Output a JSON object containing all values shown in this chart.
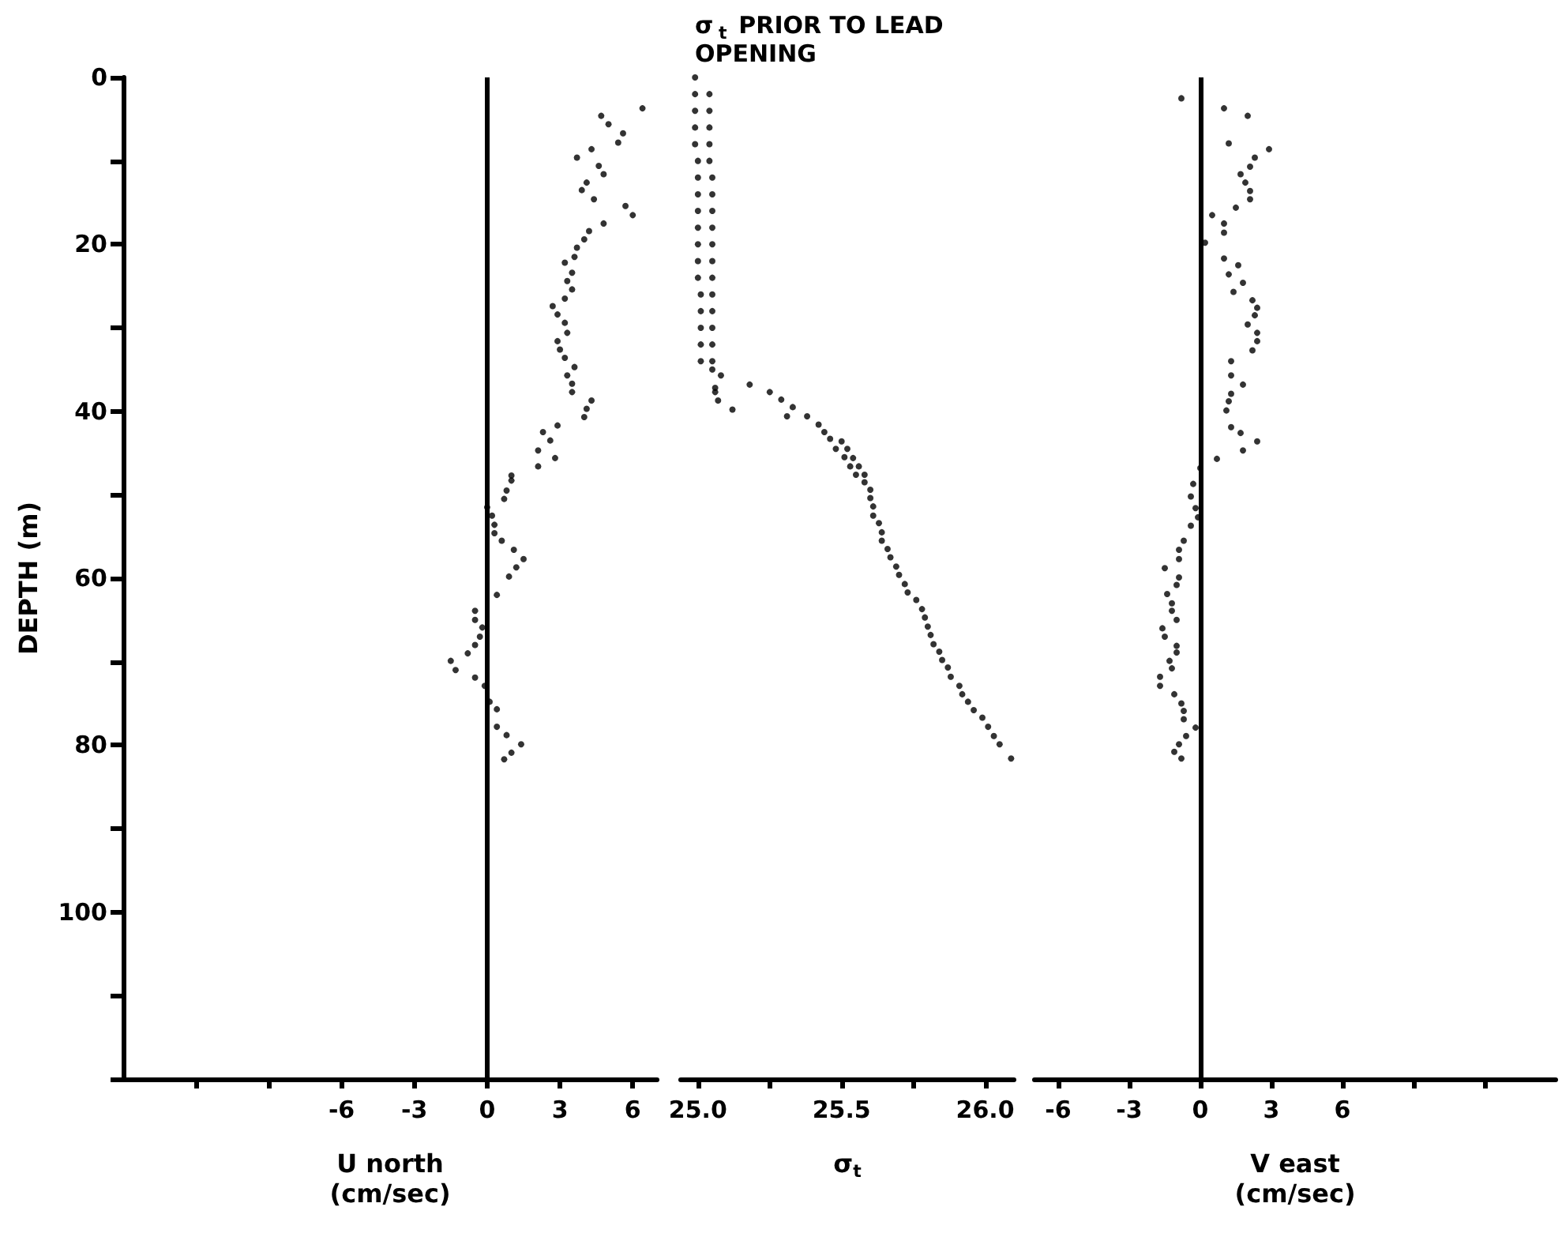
{
  "chart_data": [
    {
      "type": "scatter",
      "ylabel": "DEPTH (m)",
      "xlabel": "U north\n(cm/sec)",
      "marker": "circle",
      "xlim": [
        -15,
        7
      ],
      "xticks": [
        {
          "value": -12,
          "label": null
        },
        {
          "value": -9,
          "label": null
        },
        -6,
        -3,
        0,
        3,
        6
      ],
      "ylim": [
        120,
        0
      ],
      "yticks": [
        0,
        {
          "value": 10,
          "label": null
        },
        20,
        {
          "value": 30,
          "label": null
        },
        40,
        {
          "value": 50,
          "label": null
        },
        60,
        {
          "value": 70,
          "label": null
        },
        80,
        {
          "value": 90,
          "label": null
        },
        100,
        {
          "value": 110,
          "label": null
        },
        {
          "value": 120,
          "label": null
        }
      ],
      "ref_lines": [
        {
          "axis": "x",
          "value": 0,
          "color": "#000000"
        }
      ],
      "series": [
        {
          "color": "#000000",
          "x": [
            6.4,
            4.7,
            5.0,
            5.6,
            5.4,
            4.3,
            3.7,
            4.6,
            4.8,
            4.1,
            3.9,
            4.4,
            5.7,
            6.0,
            4.8,
            4.2,
            4.0,
            3.7,
            3.6,
            3.2,
            3.5,
            3.3,
            3.5,
            3.2,
            2.7,
            2.9,
            3.2,
            3.3,
            2.9,
            3.0,
            3.2,
            3.6,
            3.3,
            3.5,
            3.5,
            4.3,
            4.1,
            4.0,
            2.9,
            2.3,
            2.6,
            2.1,
            2.8,
            2.1,
            1.0,
            1.0,
            0.8,
            0.7,
            0.0,
            0.2,
            0.3,
            0.3,
            0.6,
            1.1,
            1.5,
            1.2,
            0.9,
            0.4,
            -0.5,
            -0.5,
            -0.2,
            -0.3,
            -0.5,
            -0.8,
            -1.5,
            -1.3,
            -0.5,
            -0.1,
            0.1,
            0.4,
            0.4,
            0.8,
            1.4,
            1.0,
            0.7
          ],
          "values": [
            3.7,
            4.6,
            5.6,
            6.7,
            7.8,
            8.6,
            9.6,
            10.6,
            11.6,
            12.6,
            13.5,
            14.6,
            15.4,
            16.5,
            17.5,
            18.4,
            19.4,
            20.4,
            21.5,
            22.2,
            23.4,
            24.4,
            25.4,
            26.5,
            27.4,
            28.4,
            29.4,
            30.6,
            31.6,
            32.6,
            33.6,
            34.7,
            35.7,
            36.7,
            37.7,
            38.7,
            39.7,
            40.7,
            41.7,
            42.5,
            43.5,
            44.7,
            45.6,
            46.6,
            47.7,
            48.3,
            49.5,
            50.5,
            51.5,
            52.5,
            53.6,
            54.6,
            55.5,
            56.6,
            57.7,
            58.7,
            59.8,
            62.0,
            63.9,
            65.0,
            65.9,
            67.0,
            68.0,
            69.0,
            69.9,
            71.0,
            71.9,
            72.9,
            74.8,
            75.7,
            77.8,
            78.8,
            79.9,
            80.9,
            81.7
          ]
        }
      ]
    },
    {
      "type": "scatter",
      "title": "σ$_{t}$ PRIOR TO LEAD OPENING",
      "xlabel": "σ$_{t}$",
      "marker": "circle",
      "tick_labels": "x",
      "xlim": [
        24.94,
        26.1
      ],
      "xticks": [
        {
          "value": 25,
          "label": "25.0"
        },
        {
          "value": 25.25,
          "label": null
        },
        25.5,
        {
          "value": 25.75,
          "label": null
        },
        {
          "value": 26,
          "label": "26.0"
        }
      ],
      "ylim": [
        120,
        0
      ],
      "series": [
        {
          "color": "#000000",
          "x": [
            24.99,
            24.99,
            24.99,
            24.99,
            24.99,
            25.0,
            25.0,
            25.0,
            25.0,
            25.0,
            25.0,
            25.0,
            25.0,
            25.01,
            25.01,
            25.01,
            25.01,
            25.01,
            25.04,
            25.04,
            25.04,
            25.04,
            25.04,
            25.05,
            25.05,
            25.05,
            25.05,
            25.05,
            25.05,
            25.05,
            25.05,
            25.05,
            25.05,
            25.05,
            25.05,
            25.05,
            25.08,
            25.06,
            25.06,
            25.07,
            25.12,
            25.18,
            25.25,
            25.29,
            25.33,
            25.31,
            25.38,
            25.42,
            25.44,
            25.46,
            25.5,
            25.48,
            25.52,
            25.51,
            25.54,
            25.53,
            25.56,
            25.55,
            25.58,
            25.58,
            25.6,
            25.6,
            25.61,
            25.61,
            25.63,
            25.64,
            25.64,
            25.66,
            25.67,
            25.69,
            25.7,
            25.72,
            25.73,
            25.76,
            25.78,
            25.79,
            25.8,
            25.81,
            25.82,
            25.84,
            25.85,
            25.87,
            25.88,
            25.91,
            25.92,
            25.94,
            25.96,
            25.99,
            26.01,
            26.03,
            26.05,
            26.09
          ],
          "values": [
            0,
            2,
            4,
            6,
            8,
            10,
            12,
            14,
            16,
            18,
            20,
            22,
            24,
            26,
            28,
            30,
            32,
            34,
            2,
            4,
            6,
            8,
            10,
            12,
            14,
            16,
            18,
            20,
            22,
            24,
            26,
            28,
            30,
            32,
            34,
            35,
            35.7,
            37.2,
            37.7,
            38.7,
            39.8,
            36.8,
            37.7,
            38.6,
            39.5,
            40.6,
            40.6,
            41.6,
            42.5,
            43.3,
            43.6,
            44.5,
            44.5,
            45.5,
            45.6,
            46.6,
            46.6,
            47.6,
            47.6,
            48.5,
            49.4,
            50.4,
            51.4,
            52.5,
            53.4,
            54.5,
            55.5,
            56.5,
            57.5,
            58.6,
            59.6,
            60.7,
            61.7,
            62.6,
            63.7,
            64.7,
            65.8,
            66.8,
            67.9,
            68.8,
            69.8,
            70.7,
            71.8,
            72.9,
            73.9,
            74.8,
            75.8,
            76.7,
            77.8,
            78.9,
            79.9,
            81.6
          ]
        }
      ]
    },
    {
      "type": "scatter",
      "xlabel": "V east\n(cm/sec)",
      "marker": "circle",
      "tick_labels": "x",
      "xlim": [
        -7,
        15
      ],
      "xticks": [
        -6,
        -3,
        0,
        3,
        6,
        {
          "value": 9,
          "label": null
        },
        {
          "value": 12,
          "label": null
        }
      ],
      "ylim": [
        120,
        0
      ],
      "ref_lines": [
        {
          "axis": "x",
          "value": 0,
          "color": "#000000"
        }
      ],
      "series": [
        {
          "color": "#000000",
          "x": [
            -0.8,
            1.0,
            2.0,
            1.2,
            2.9,
            2.3,
            2.1,
            1.7,
            1.9,
            2.1,
            2.1,
            1.5,
            0.5,
            1.0,
            1.0,
            0.2,
            1.0,
            1.6,
            1.2,
            1.8,
            1.4,
            2.2,
            2.4,
            2.3,
            2.0,
            2.4,
            2.4,
            2.2,
            1.3,
            1.3,
            1.8,
            1.3,
            1.2,
            1.1,
            1.3,
            1.7,
            2.4,
            1.8,
            0.7,
            0.0,
            -0.3,
            -0.4,
            -0.2,
            -0.1,
            -0.4,
            -0.7,
            -0.9,
            -0.9,
            -1.5,
            -0.9,
            -1.0,
            -1.4,
            -1.2,
            -1.2,
            -1.0,
            -1.6,
            -1.5,
            -1.0,
            -1.0,
            -1.3,
            -1.2,
            -1.7,
            -1.7,
            -1.1,
            -0.8,
            -0.7,
            -0.7,
            -0.2,
            -0.6,
            -0.9,
            -1.1,
            -0.8
          ],
          "values": [
            2.5,
            3.7,
            4.6,
            7.9,
            8.6,
            9.6,
            10.7,
            11.6,
            12.6,
            13.6,
            14.6,
            15.6,
            16.5,
            17.5,
            18.6,
            19.8,
            21.7,
            22.5,
            23.6,
            24.6,
            25.7,
            26.7,
            27.6,
            28.5,
            29.6,
            30.6,
            31.6,
            32.7,
            34.0,
            35.7,
            36.8,
            37.9,
            38.8,
            39.9,
            41.9,
            42.6,
            43.6,
            44.7,
            45.7,
            46.8,
            48.7,
            50.2,
            51.6,
            52.7,
            53.7,
            55.5,
            56.6,
            57.7,
            58.8,
            59.9,
            60.8,
            61.9,
            63.0,
            63.9,
            65.0,
            66.0,
            67.0,
            68.1,
            68.9,
            69.9,
            70.8,
            71.8,
            72.9,
            73.9,
            75.0,
            75.9,
            76.9,
            77.9,
            78.9,
            79.9,
            80.8,
            81.6
          ]
        }
      ]
    }
  ]
}
